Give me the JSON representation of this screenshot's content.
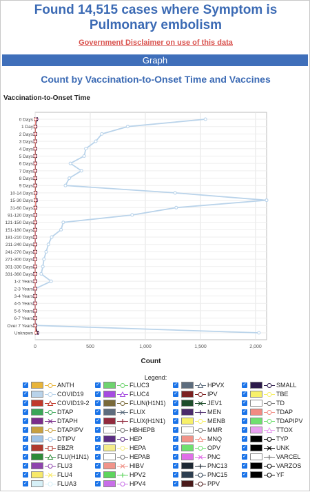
{
  "header": {
    "title": "Found 14,515 cases where Symptom is Pulmonary embolism",
    "disclaimer": "Government Disclaimer on use of this data",
    "section": "Graph"
  },
  "chart_data": {
    "type": "line",
    "title": "Count by Vaccination-to-Onset Time and Vaccines",
    "ylabel": "Vaccination-to-Onset Time",
    "xlabel": "Count",
    "xlim": [
      0,
      2100
    ],
    "xticks": [
      "0",
      "500",
      "1,000",
      "1,500",
      "2,000"
    ],
    "grid": true,
    "categories": [
      "0 Days",
      "1 Day",
      "2 Days",
      "3 Days",
      "4 Days",
      "5 Days",
      "6 Days",
      "7 Days",
      "8 Days",
      "9 Days",
      "10-14 Days",
      "15-30 Days",
      "31-60 Days",
      "91-120 Days",
      "121-150 Days",
      "151-180 Days",
      "181-210 Days",
      "211-240 Days",
      "241-270 Days",
      "271-300 Days",
      "301-330 Days",
      "331-360 Days",
      "1-2 Years",
      "2-3 Years",
      "3-4 Years",
      "4-5 Years",
      "5-6 Years",
      "6-7 Years",
      "Over 7 Years",
      "Unknown"
    ],
    "series": [
      {
        "name": "COVID19",
        "color": "#b9d3ea",
        "values": [
          1545,
          840,
          605,
          550,
          460,
          445,
          320,
          420,
          310,
          275,
          1270,
          2100,
          1280,
          880,
          255,
          235,
          150,
          120,
          100,
          80,
          70,
          55,
          145,
          2,
          0,
          0,
          0,
          0,
          5,
          2030
        ]
      },
      {
        "name": "FLU3",
        "color": "#7b2d8b",
        "values": [
          12,
          3,
          2,
          2,
          1,
          1,
          1,
          1,
          1,
          1,
          4,
          7,
          3,
          2,
          1,
          1,
          1,
          1,
          0,
          0,
          0,
          0,
          1,
          0,
          0,
          0,
          0,
          0,
          1,
          20
        ]
      },
      {
        "name": "UNK",
        "color": "#000000",
        "values": [
          8,
          2,
          1,
          1,
          1,
          1,
          1,
          1,
          1,
          1,
          3,
          5,
          2,
          1,
          0,
          0,
          0,
          0,
          0,
          0,
          0,
          0,
          0,
          0,
          0,
          0,
          0,
          0,
          0,
          15
        ]
      },
      {
        "name": "TDAP",
        "color": "#f28b82",
        "values": [
          4,
          1,
          1,
          1,
          0,
          0,
          0,
          0,
          0,
          0,
          2,
          3,
          2,
          1,
          0,
          0,
          0,
          0,
          0,
          0,
          0,
          0,
          0,
          0,
          0,
          0,
          0,
          0,
          0,
          6
        ]
      }
    ]
  },
  "legend": {
    "title": "Legend:",
    "items": [
      {
        "label": "ANTH",
        "color": "#e8b43a",
        "marker": "circle"
      },
      {
        "label": "COVID19",
        "color": "#b9d3ea",
        "marker": "circle"
      },
      {
        "label": "COVID19-2",
        "color": "#c0392b",
        "marker": "triangle"
      },
      {
        "label": "DTAP",
        "color": "#3aa657",
        "marker": "circle"
      },
      {
        "label": "DTAPH",
        "color": "#7b2d8b",
        "marker": "x"
      },
      {
        "label": "DTAPIPV",
        "color": "#c8a040",
        "marker": "circle"
      },
      {
        "label": "DTIPV",
        "color": "#9fc3e7",
        "marker": "circle"
      },
      {
        "label": "EBZR",
        "color": "#b03a2e",
        "marker": "square"
      },
      {
        "label": "FLU(H1N1)",
        "color": "#2e8b3a",
        "marker": "triangle"
      },
      {
        "label": "FLU3",
        "color": "#8e44ad",
        "marker": "circle"
      },
      {
        "label": "FLU4",
        "color": "#f7e96a",
        "marker": "x"
      },
      {
        "label": "FLUA3",
        "color": "#d6f0f7",
        "marker": "circle"
      },
      {
        "label": "FLUC3",
        "color": "#6fd36f",
        "marker": "circle"
      },
      {
        "label": "FLUC4",
        "color": "#a64ce0",
        "marker": "triangle"
      },
      {
        "label": "FLUN(H1N1)",
        "color": "#7a6a3a",
        "marker": "circle"
      },
      {
        "label": "FLUX",
        "color": "#5d6d7e",
        "marker": "x"
      },
      {
        "label": "FLUX(H1N1)",
        "color": "#922b3e",
        "marker": "plus"
      },
      {
        "label": "HBHEPB",
        "color": "#ffffff",
        "marker": "circle"
      },
      {
        "label": "HEP",
        "color": "#5b2c83",
        "marker": "circle"
      },
      {
        "label": "HEPA",
        "color": "#f4ec8a",
        "marker": "circle"
      },
      {
        "label": "HEPAB",
        "color": "#ffffff",
        "marker": "circle"
      },
      {
        "label": "HIBV",
        "color": "#f1948a",
        "marker": "x"
      },
      {
        "label": "HPV2",
        "color": "#5dd45d",
        "marker": "plus"
      },
      {
        "label": "HPV4",
        "color": "#c86ee8",
        "marker": "circle"
      },
      {
        "label": "HPVX",
        "color": "#5d6d7e",
        "marker": "triangle"
      },
      {
        "label": "IPV",
        "color": "#7b2020",
        "marker": "circle"
      },
      {
        "label": "JEV1",
        "color": "#1e4d2b",
        "marker": "x"
      },
      {
        "label": "MEN",
        "color": "#4a2a6a",
        "marker": "plus"
      },
      {
        "label": "MENB",
        "color": "#f7f06a",
        "marker": "circle"
      },
      {
        "label": "MMR",
        "color": "#ffffff",
        "marker": "circle"
      },
      {
        "label": "MNQ",
        "color": "#f1948a",
        "marker": "triangle"
      },
      {
        "label": "OPV",
        "color": "#6fe06f",
        "marker": "circle"
      },
      {
        "label": "PNC",
        "color": "#e06ee8",
        "marker": "x"
      },
      {
        "label": "PNC13",
        "color": "#1c2833",
        "marker": "plus"
      },
      {
        "label": "PNC15",
        "color": "#2c3e50",
        "marker": "circle"
      },
      {
        "label": "PPV",
        "color": "#4a1a1a",
        "marker": "circle"
      },
      {
        "label": "SMALL",
        "color": "#2c1a4a",
        "marker": "circle"
      },
      {
        "label": "TBE",
        "color": "#f7f06a",
        "marker": "circle"
      },
      {
        "label": "TD",
        "color": "#ffffff",
        "marker": "circle"
      },
      {
        "label": "TDAP",
        "color": "#f28b82",
        "marker": "circle"
      },
      {
        "label": "TDAPIPV",
        "color": "#6fe06f",
        "marker": "circle"
      },
      {
        "label": "TTOX",
        "color": "#e8a0f0",
        "marker": "triangle"
      },
      {
        "label": "TYP",
        "color": "#000000",
        "marker": "circle"
      },
      {
        "label": "UNK",
        "color": "#000000",
        "marker": "x"
      },
      {
        "label": "VARCEL",
        "color": "#ffffff",
        "marker": "plus"
      },
      {
        "label": "VARZOS",
        "color": "#000000",
        "marker": "circle"
      },
      {
        "label": "YF",
        "color": "#000000",
        "marker": "circle"
      }
    ]
  }
}
